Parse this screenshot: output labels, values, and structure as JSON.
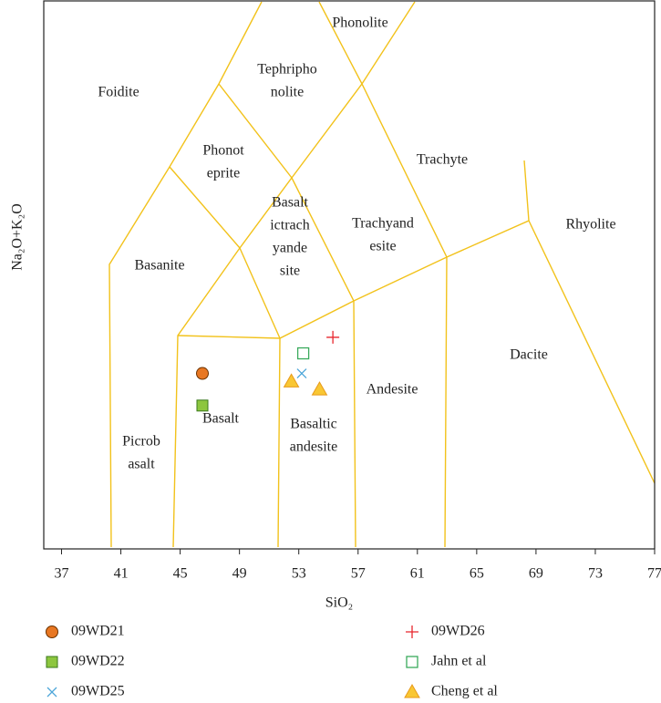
{
  "chart_data": {
    "type": "scatter",
    "x_label": "SiO₂",
    "y_label": "Na₂O+K₂O",
    "xlim": [
      35.8,
      77
    ],
    "ylim": [
      -0.27,
      13.4
    ],
    "xticks": [
      37,
      41,
      45,
      49,
      53,
      57,
      61,
      65,
      69,
      73,
      77
    ],
    "annotations": [
      [
        "Foidite"
      ],
      [
        "Tephripho",
        "nolite"
      ],
      [
        "Phonolite"
      ],
      [
        "Phonot",
        "eprite"
      ],
      [
        "Trachyte"
      ],
      [
        "Basalt",
        "ictrach",
        "yande",
        "site"
      ],
      [
        "Trachyand",
        "esite"
      ],
      [
        "Rhyolite"
      ],
      [
        "Basanite"
      ],
      [
        "Andesite"
      ],
      [
        "Dacite"
      ],
      [
        "Basalt"
      ],
      [
        "Basaltic",
        "andesite"
      ],
      [
        "Picrob",
        "asalt"
      ]
    ],
    "series": [
      {
        "name": "09WD21",
        "marker": "circle",
        "color": "#e87722",
        "x": [
          46.5
        ],
        "values": [
          4.1
        ]
      },
      {
        "name": "09WD22",
        "marker": "filled-square",
        "color": "#8dc63f",
        "x": [
          46.5
        ],
        "values": [
          3.3
        ]
      },
      {
        "name": "09WD25",
        "marker": "x",
        "color": "#4da6d9",
        "x": [
          53.2
        ],
        "values": [
          4.1
        ]
      },
      {
        "name": "09WD26",
        "marker": "plus",
        "color": "#e8262d",
        "x": [
          55.3
        ],
        "values": [
          5.0
        ]
      },
      {
        "name": "Jahn et al",
        "marker": "open-square",
        "color": "#3aaa5c",
        "x": [
          53.3
        ],
        "values": [
          4.6
        ]
      },
      {
        "name": "Cheng et al",
        "marker": "triangle",
        "color": "#f9c733",
        "x": [
          52.5,
          54.4
        ],
        "values": [
          3.9,
          3.7
        ]
      }
    ]
  }
}
